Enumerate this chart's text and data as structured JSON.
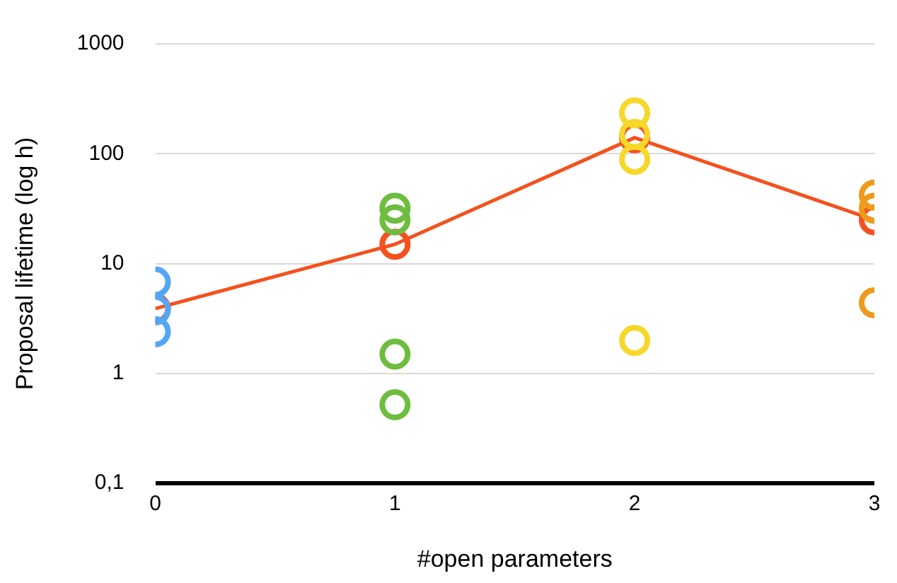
{
  "chart_data": {
    "type": "scatter",
    "xlabel": "#open parameters",
    "ylabel": "Proposal lifetime (log h)",
    "log": "y",
    "grid": "y",
    "legend": false,
    "marker": "circle",
    "xlim": [
      0,
      3
    ],
    "xticks": [
      0,
      1,
      2,
      3
    ],
    "ylim": [
      0.1,
      1000
    ],
    "yticks": [
      {
        "value": 0.1,
        "label": "0,1"
      },
      1,
      10,
      100,
      1000
    ],
    "series": [
      {
        "type": "line",
        "color": "#f4511e",
        "x": [
          0,
          1,
          2,
          3
        ],
        "values": [
          3.9,
          15,
          140,
          25
        ]
      },
      {
        "color": "#54a6f5",
        "x": [
          0,
          0,
          0
        ],
        "values": [
          6.8,
          3.8,
          2.4
        ]
      },
      {
        "color": "#6ebd3f",
        "x": [
          1,
          1,
          1,
          1
        ],
        "values": [
          32,
          25,
          1.5,
          0.52
        ]
      },
      {
        "color": "#f7d82a",
        "x": [
          2,
          2,
          2,
          2
        ],
        "values": [
          236,
          150,
          89,
          2.0
        ]
      },
      {
        "color": "#ee9a1c",
        "x": [
          3,
          3,
          3
        ],
        "values": [
          42,
          32,
          4.4
        ]
      }
    ]
  }
}
